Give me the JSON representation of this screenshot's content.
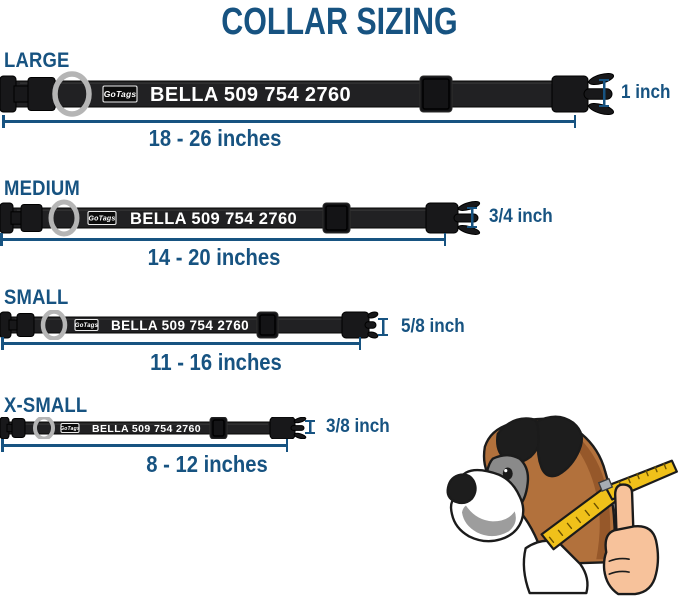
{
  "title": "COLLAR SIZING",
  "brand_logo": "GoTags",
  "collar_text": "BELLA 509 754 2760",
  "colors": {
    "accent_blue": "#175381",
    "collar_black": "#1f1f21",
    "ring_gray": "#b5b5b5",
    "tape_yellow": "#f0c11a"
  },
  "icons": {
    "dog_illustration": "boxer-dog-with-measuring-tape-and-hand",
    "ring": "metal-d-ring",
    "buckle": "side-release-buckle"
  },
  "sizes": [
    {
      "id": "large",
      "label": "LARGE",
      "width_label": "1 inch",
      "range_label": "18 - 26 inches"
    },
    {
      "id": "medium",
      "label": "MEDIUM",
      "width_label": "3/4 inch",
      "range_label": "14 - 20 inches"
    },
    {
      "id": "small",
      "label": "SMALL",
      "width_label": "5/8 inch",
      "range_label": "11 - 16 inches"
    },
    {
      "id": "x-small",
      "label": "X-SMALL",
      "width_label": "3/8 inch",
      "range_label": "8 - 12 inches"
    }
  ]
}
